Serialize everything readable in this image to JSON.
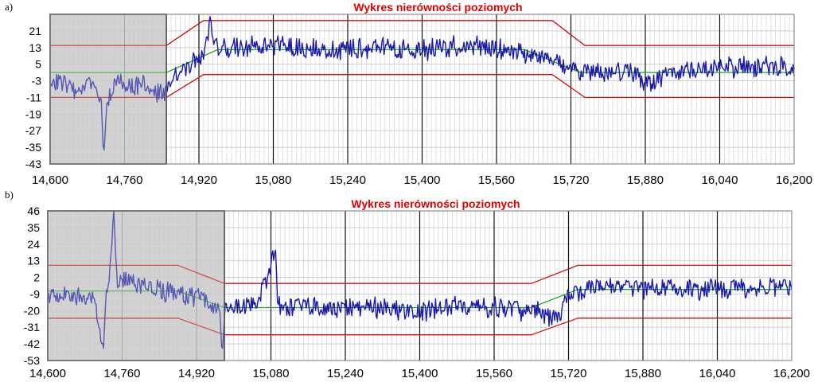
{
  "figure": {
    "panels": [
      "a)",
      "b)"
    ]
  },
  "chart_data": [
    {
      "type": "line",
      "panel": "a)",
      "title": "Wykres nierówności poziomych",
      "xlim": [
        14600,
        16200
      ],
      "ylim": [
        -43,
        29
      ],
      "x_ticks": [
        14600,
        14760,
        14920,
        15080,
        15240,
        15400,
        15560,
        15720,
        15880,
        16040,
        16200
      ],
      "x_tick_labels": [
        "14,600",
        "14,760",
        "14,920",
        "15,080",
        "15,240",
        "15,400",
        "15,560",
        "15,720",
        "15,880",
        "16,040",
        "16,200"
      ],
      "y_ticks": [
        21,
        13,
        5,
        -3,
        -11,
        -19,
        -27,
        -35,
        -43
      ],
      "y_tick_labels": [
        "21",
        "13",
        "5",
        "-3",
        "-11",
        "-19",
        "-27",
        "-35",
        "-43"
      ],
      "grid": true,
      "shaded_x": [
        14600,
        14850
      ],
      "colors": {
        "signal": "#1a1aa8",
        "limits": "#cc1111",
        "mean": "#22aa22",
        "title": "#e00000",
        "shade": "#c8c8c8"
      },
      "series": [
        {
          "role": "upper limit",
          "x": [
            14600,
            14850,
            14930,
            15580,
            15680,
            15750,
            16200
          ],
          "y": [
            14,
            14,
            26,
            26,
            26,
            14,
            14
          ]
        },
        {
          "role": "lower limit",
          "x": [
            14600,
            14850,
            14930,
            15580,
            15680,
            15750,
            16200
          ],
          "y": [
            -11,
            -11,
            0,
            0,
            0,
            -11,
            -11
          ]
        },
        {
          "role": "mean",
          "x": [
            14600,
            14850,
            14960,
            15620,
            15740,
            16200
          ],
          "y": [
            1,
            1,
            12,
            12,
            1,
            1
          ]
        },
        {
          "role": "signal",
          "x": [
            14600,
            14630,
            14660,
            14690,
            14710,
            14715,
            14722,
            14740,
            14770,
            14800,
            14830,
            14850,
            14870,
            14900,
            14930,
            14945,
            14960,
            15000,
            15100,
            15200,
            15300,
            15400,
            15500,
            15600,
            15660,
            15700,
            15750,
            15800,
            15850,
            15880,
            15900,
            15950,
            16000,
            16100,
            16200
          ],
          "y": [
            -2,
            -5,
            -8,
            -4,
            -12,
            -40,
            -14,
            -4,
            -7,
            -3,
            -9,
            -8,
            0,
            4,
            9,
            24,
            12,
            13,
            14,
            12,
            13,
            12,
            14,
            11,
            10,
            6,
            2,
            0,
            2,
            -5,
            -3,
            2,
            3,
            4,
            3
          ]
        }
      ]
    },
    {
      "type": "line",
      "panel": "b)",
      "title": "Wykres nierówności poziomych",
      "xlim": [
        14600,
        16200
      ],
      "ylim": [
        -53,
        46
      ],
      "x_ticks": [
        14600,
        14760,
        14920,
        15080,
        15240,
        15400,
        15560,
        15720,
        15880,
        16040,
        16200
      ],
      "x_tick_labels": [
        "14,600",
        "14,760",
        "14,920",
        "15,080",
        "15,240",
        "15,400",
        "15,560",
        "15,720",
        "15,880",
        "16,040",
        "16,200"
      ],
      "y_ticks": [
        46,
        35,
        24,
        13,
        2,
        -9,
        -20,
        -31,
        -42,
        -53
      ],
      "y_tick_labels": [
        "46",
        "35",
        "24",
        "13",
        "2",
        "-9",
        "-20",
        "-31",
        "-42",
        "-53"
      ],
      "grid": true,
      "shaded_x": [
        14600,
        14980
      ],
      "colors": {
        "signal": "#1a1aa8",
        "limits": "#cc1111",
        "mean": "#22aa22",
        "title": "#e00000",
        "shade": "#c8c8c8"
      },
      "series": [
        {
          "role": "upper limit",
          "x": [
            14600,
            14880,
            14980,
            15640,
            15740,
            16200
          ],
          "y": [
            10,
            10,
            -2,
            -2,
            10,
            10
          ]
        },
        {
          "role": "lower limit",
          "x": [
            14600,
            14880,
            14980,
            15640,
            15740,
            16200
          ],
          "y": [
            -25,
            -25,
            -36,
            -36,
            -25,
            -25
          ]
        },
        {
          "role": "mean",
          "x": [
            14600,
            14880,
            14980,
            15640,
            15740,
            16200
          ],
          "y": [
            -7,
            -7,
            -18,
            -18,
            -6,
            -6
          ]
        },
        {
          "role": "signal",
          "x": [
            14600,
            14650,
            14700,
            14720,
            14725,
            14730,
            14742,
            14750,
            14760,
            14800,
            14850,
            14900,
            14950,
            14970,
            14975,
            14982,
            15000,
            15050,
            15090,
            15095,
            15100,
            15150,
            15200,
            15300,
            15400,
            15500,
            15600,
            15650,
            15700,
            15720,
            15760,
            15800,
            15900,
            16000,
            16100,
            16200
          ],
          "y": [
            -10,
            -8,
            -12,
            -45,
            -10,
            -5,
            46,
            -5,
            2,
            -3,
            -8,
            -10,
            -15,
            -20,
            -50,
            -15,
            -18,
            -16,
            20,
            -15,
            -18,
            -16,
            -19,
            -18,
            -20,
            -17,
            -19,
            -20,
            -25,
            -8,
            -6,
            -4,
            -5,
            -6,
            -4,
            -5
          ]
        }
      ]
    }
  ]
}
